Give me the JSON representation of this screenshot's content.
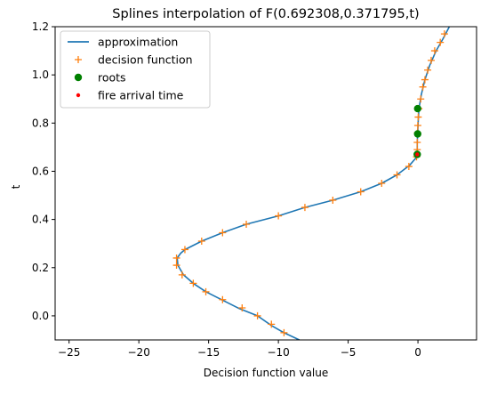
{
  "chart_data": {
    "type": "line",
    "title": "Splines interpolation of F(0.692308,0.371795,t)",
    "xlabel": "Decision function value",
    "ylabel": "t",
    "xlim": [
      -26.0,
      4.2
    ],
    "ylim": [
      -0.1,
      1.2
    ],
    "xticks": [
      -25,
      -20,
      -15,
      -10,
      -5,
      0
    ],
    "yticks": [
      0.0,
      0.2,
      0.4,
      0.6,
      0.8,
      1.0,
      1.2
    ],
    "grid": false,
    "legend_placement": "top-left",
    "series": [
      {
        "name": "approximation",
        "kind": "line",
        "color": "#1f77b4",
        "points": [
          [
            -8.5,
            -0.1
          ],
          [
            -9.6,
            -0.07
          ],
          [
            -10.5,
            -0.04
          ],
          [
            -11.5,
            0.0
          ],
          [
            -12.8,
            0.03
          ],
          [
            -14.0,
            0.065
          ],
          [
            -15.2,
            0.1
          ],
          [
            -16.1,
            0.135
          ],
          [
            -16.8,
            0.17
          ],
          [
            -17.2,
            0.21
          ],
          [
            -17.25,
            0.24
          ],
          [
            -17.0,
            0.26
          ],
          [
            -16.7,
            0.275
          ],
          [
            -15.5,
            0.31
          ],
          [
            -14.0,
            0.345
          ],
          [
            -12.3,
            0.38
          ],
          [
            -10.0,
            0.415
          ],
          [
            -8.1,
            0.45
          ],
          [
            -6.1,
            0.48
          ],
          [
            -4.1,
            0.515
          ],
          [
            -2.6,
            0.55
          ],
          [
            -1.5,
            0.585
          ],
          [
            -0.6,
            0.625
          ],
          [
            -0.15,
            0.655
          ],
          [
            -0.05,
            0.67
          ],
          [
            -0.05,
            0.72
          ],
          [
            -0.02,
            0.76
          ],
          [
            0.02,
            0.81
          ],
          [
            0.07,
            0.86
          ],
          [
            0.25,
            0.92
          ],
          [
            0.5,
            0.98
          ],
          [
            0.85,
            1.04
          ],
          [
            1.3,
            1.1
          ],
          [
            1.8,
            1.15
          ],
          [
            2.25,
            1.2
          ]
        ]
      },
      {
        "name": "decision function",
        "kind": "marker-plus",
        "color": "#ff7f0e",
        "points": [
          [
            -9.6,
            -0.07
          ],
          [
            -10.5,
            -0.035
          ],
          [
            -11.5,
            0.0
          ],
          [
            -12.6,
            0.033
          ],
          [
            -14.0,
            0.067
          ],
          [
            -15.2,
            0.1
          ],
          [
            -16.1,
            0.135
          ],
          [
            -16.9,
            0.17
          ],
          [
            -17.3,
            0.21
          ],
          [
            -17.3,
            0.24
          ],
          [
            -16.7,
            0.275
          ],
          [
            -15.5,
            0.31
          ],
          [
            -14.0,
            0.345
          ],
          [
            -12.3,
            0.38
          ],
          [
            -10.0,
            0.415
          ],
          [
            -8.1,
            0.45
          ],
          [
            -6.1,
            0.48
          ],
          [
            -4.1,
            0.515
          ],
          [
            -2.6,
            0.55
          ],
          [
            -1.5,
            0.585
          ],
          [
            -0.65,
            0.62
          ],
          [
            -0.1,
            0.66
          ],
          [
            -0.05,
            0.69
          ],
          [
            -0.05,
            0.72
          ],
          [
            -0.03,
            0.76
          ],
          [
            -0.01,
            0.79
          ],
          [
            0.02,
            0.825
          ],
          [
            0.07,
            0.86
          ],
          [
            0.2,
            0.9
          ],
          [
            0.35,
            0.95
          ],
          [
            0.5,
            0.98
          ],
          [
            0.7,
            1.02
          ],
          [
            0.95,
            1.06
          ],
          [
            1.2,
            1.1
          ],
          [
            1.6,
            1.135
          ],
          [
            1.9,
            1.17
          ]
        ]
      },
      {
        "name": "roots",
        "kind": "marker-dot",
        "color": "#008000",
        "points": [
          [
            -0.05,
            0.67
          ],
          [
            -0.02,
            0.755
          ],
          [
            -0.02,
            0.86
          ]
        ]
      },
      {
        "name": "fire arrival time",
        "kind": "marker-small-dot",
        "color": "#ff0000",
        "points": [
          [
            -0.05,
            0.67
          ]
        ]
      }
    ]
  }
}
